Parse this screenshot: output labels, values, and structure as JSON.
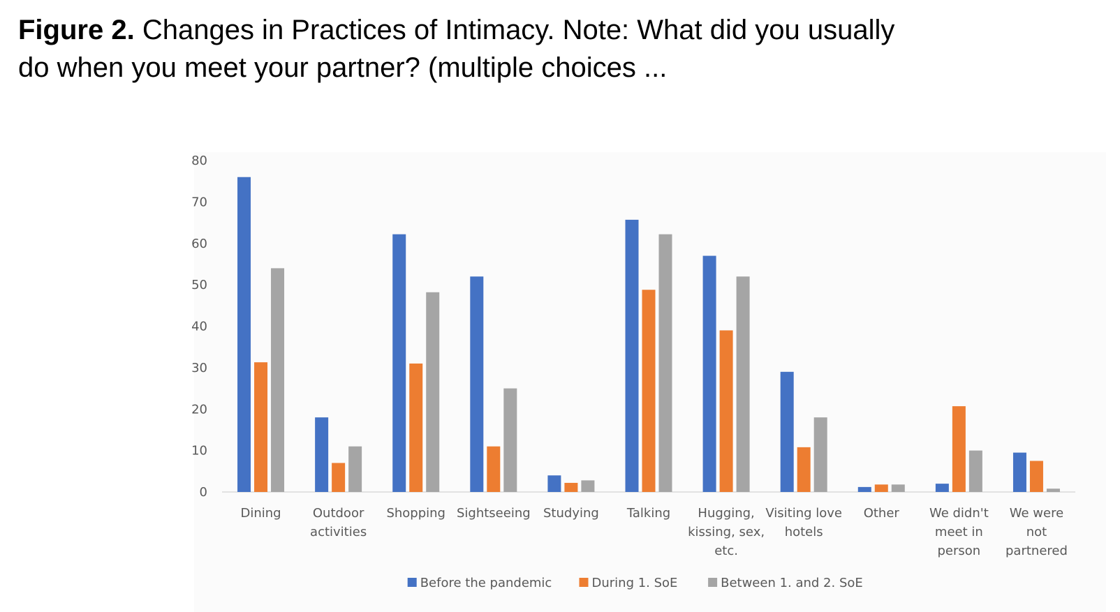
{
  "figure": {
    "number_label": "Figure 2.",
    "caption": "Changes in Practices of Intimacy. Note: What did you usually do when you meet your partner? (multiple choices ..."
  },
  "chart_data": {
    "type": "bar",
    "title": "",
    "xlabel": "",
    "ylabel": "",
    "ylim": [
      0,
      80
    ],
    "yticks": [
      0,
      10,
      20,
      30,
      40,
      50,
      60,
      70,
      80
    ],
    "grid": false,
    "legend_position": "bottom",
    "categories": [
      [
        "Dining"
      ],
      [
        "Outdoor",
        "activities"
      ],
      [
        "Shopping"
      ],
      [
        "Sightseeing"
      ],
      [
        "Studying"
      ],
      [
        "Talking"
      ],
      [
        "Hugging,",
        "kissing, sex,",
        "etc."
      ],
      [
        "Visiting love",
        "hotels"
      ],
      [
        "Other"
      ],
      [
        "We didn't",
        "meet in",
        "person"
      ],
      [
        "We were",
        "not",
        "partnered"
      ]
    ],
    "series": [
      {
        "name": "Before the pandemic",
        "color": "#4472c4",
        "values": [
          76,
          18,
          62.2,
          52,
          4,
          65.7,
          57,
          29,
          1.2,
          2,
          9.5
        ]
      },
      {
        "name": "During 1. SoE",
        "color": "#ed7d31",
        "values": [
          31.3,
          7,
          31,
          11,
          2.2,
          48.8,
          39,
          10.8,
          1.8,
          20.7,
          7.5
        ]
      },
      {
        "name": "Between 1. and 2. SoE",
        "color": "#a5a5a5",
        "values": [
          54,
          11,
          48.2,
          25,
          2.8,
          62.2,
          52,
          18,
          1.8,
          10,
          0.8
        ]
      }
    ]
  }
}
